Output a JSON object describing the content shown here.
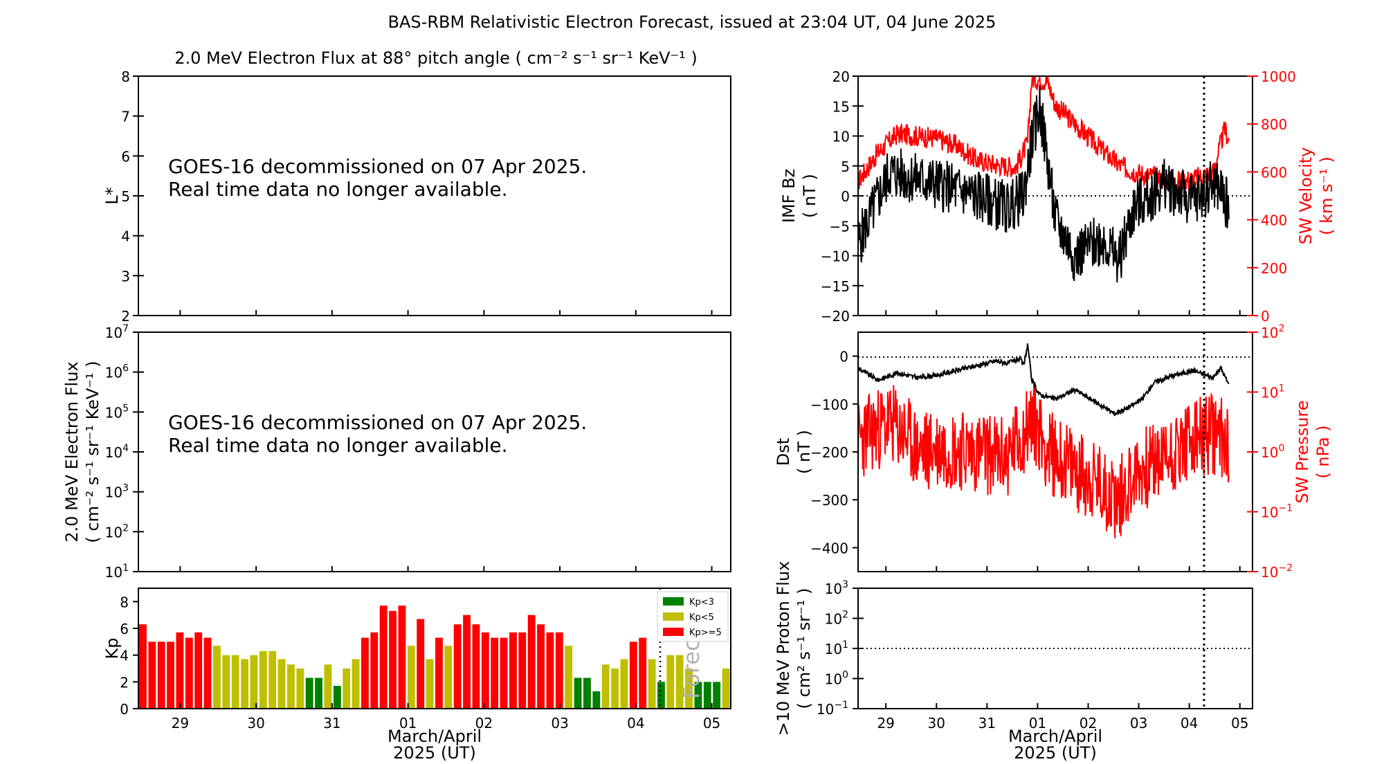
{
  "figure": {
    "title": "BAS-RBM Relativistic Electron Forecast, issued at 23:04 UT, 04 June 2025"
  },
  "colors": {
    "kp_low": "#008000",
    "kp_mid": "#bfbf00",
    "kp_high": "#ff0000",
    "sw": "#ff0000",
    "imf": "#000000"
  },
  "chart_data": [
    {
      "id": "lstar",
      "type": "line",
      "title": "2.0 MeV Electron Flux at 88° pitch angle ( cm⁻² s⁻¹ sr⁻¹ KeV⁻¹ )",
      "ylabel": "L*",
      "ylim": [
        2,
        8
      ],
      "yticks": [
        "2",
        "3",
        "4",
        "5",
        "6",
        "7",
        "8"
      ],
      "message": [
        "GOES-16 decommissioned on 07 Apr 2025.",
        "Real time data no longer available."
      ]
    },
    {
      "id": "flux",
      "type": "line",
      "ylabel": [
        "2.0 MeV Electron Flux",
        "( cm⁻² s⁻¹ sr⁻¹ KeV⁻¹ )"
      ],
      "yscale": "log",
      "ylim": [
        10,
        10000000
      ],
      "yticks": [
        [
          "10",
          "1"
        ],
        [
          "10",
          "2"
        ],
        [
          "10",
          "3"
        ],
        [
          "10",
          "4"
        ],
        [
          "10",
          "5"
        ],
        [
          "10",
          "6"
        ],
        [
          "10",
          "7"
        ]
      ],
      "message": [
        "GOES-16 decommissioned on 07 Apr 2025.",
        "Real time data no longer available."
      ]
    },
    {
      "id": "kp",
      "type": "bar",
      "ylabel": "Kp",
      "ylim": [
        0,
        9
      ],
      "yticks": [
        "0",
        "2",
        "4",
        "6",
        "8"
      ],
      "xlabel": [
        "March/April",
        "2025 (UT)"
      ],
      "xticks": [
        "29",
        "30",
        "31",
        "01",
        "02",
        "03",
        "04",
        "05"
      ],
      "legend": {
        "placement": "top-right",
        "entries": [
          "Kp<3",
          "Kp<5",
          "Kp>=5"
        ]
      },
      "forecast_label": "Forecast",
      "values": [
        6.3,
        5,
        5,
        5,
        5.7,
        5.3,
        5.7,
        5.3,
        4.7,
        4,
        4,
        3.7,
        4,
        4.3,
        4.3,
        3.7,
        3.3,
        3,
        2.3,
        2.3,
        3.3,
        1.7,
        3,
        3.7,
        5.3,
        5.7,
        7.7,
        7.3,
        7.7,
        4.7,
        6.7,
        3.7,
        5.3,
        4.7,
        6.3,
        7,
        6.3,
        5.7,
        5.3,
        5.3,
        5.7,
        5.7,
        7,
        6.3,
        5.7,
        5.7,
        4.7,
        2.3,
        2.3,
        1.3,
        3.3,
        3,
        3.7,
        5,
        5.3,
        3.7,
        2,
        4,
        4,
        3,
        2,
        2,
        2,
        3
      ]
    },
    {
      "id": "imf",
      "type": "line",
      "ylabel": [
        "IMF Bz",
        "( nT )"
      ],
      "ylim": [
        -20,
        20
      ],
      "yticks": [
        "−20",
        "−15",
        "−10",
        "−5",
        "0",
        "5",
        "10",
        "15",
        "20"
      ],
      "ylabel_right": [
        "SW Velocity",
        "( km s⁻¹ )"
      ],
      "ylim_right": [
        0,
        1000
      ],
      "yticks_right": [
        "0",
        "200",
        "400",
        "600",
        "800",
        "1000"
      ],
      "series": [
        {
          "axis": "left",
          "knots": [
            [
              0,
              -8
            ],
            [
              0.08,
              4
            ],
            [
              0.2,
              2
            ],
            [
              0.3,
              0
            ],
            [
              0.38,
              -2
            ],
            [
              0.42,
              0
            ],
            [
              0.44,
              9
            ],
            [
              0.46,
              15
            ],
            [
              0.48,
              6
            ],
            [
              0.5,
              -4
            ],
            [
              0.55,
              -10
            ],
            [
              0.62,
              -7
            ],
            [
              0.66,
              -11
            ],
            [
              0.7,
              -2
            ],
            [
              0.78,
              2
            ],
            [
              0.85,
              -1
            ],
            [
              0.9,
              2
            ],
            [
              0.92,
              1
            ],
            [
              0.94,
              -2
            ]
          ]
        },
        {
          "axis": "right",
          "knots": [
            [
              0,
              560
            ],
            [
              0.05,
              680
            ],
            [
              0.1,
              760
            ],
            [
              0.2,
              740
            ],
            [
              0.25,
              710
            ],
            [
              0.3,
              650
            ],
            [
              0.35,
              630
            ],
            [
              0.4,
              620
            ],
            [
              0.43,
              720
            ],
            [
              0.44,
              990
            ],
            [
              0.48,
              980
            ],
            [
              0.5,
              880
            ],
            [
              0.55,
              800
            ],
            [
              0.6,
              720
            ],
            [
              0.66,
              630
            ],
            [
              0.7,
              600
            ],
            [
              0.75,
              580
            ],
            [
              0.8,
              560
            ],
            [
              0.85,
              570
            ],
            [
              0.9,
              600
            ],
            [
              0.92,
              720
            ],
            [
              0.93,
              780
            ],
            [
              0.94,
              730
            ]
          ]
        }
      ]
    },
    {
      "id": "dst",
      "type": "line",
      "ylabel": [
        "Dst",
        "( nT )"
      ],
      "ylim": [
        -450,
        50
      ],
      "yticks": [
        "−400",
        "−300",
        "−200",
        "−100",
        "0"
      ],
      "ylabel_right": [
        "SW Pressure",
        "( nPa )"
      ],
      "yscale_right": "log",
      "ylim_right": [
        0.01,
        100
      ],
      "yticks_right": [
        [
          "10",
          "−2"
        ],
        [
          "10",
          "−1"
        ],
        [
          "10",
          "0"
        ],
        [
          "10",
          "1"
        ],
        [
          "10",
          "2"
        ]
      ],
      "series": [
        {
          "axis": "left",
          "knots": [
            [
              0,
              -25
            ],
            [
              0.05,
              -50
            ],
            [
              0.1,
              -35
            ],
            [
              0.15,
              -45
            ],
            [
              0.2,
              -40
            ],
            [
              0.25,
              -30
            ],
            [
              0.3,
              -20
            ],
            [
              0.35,
              -10
            ],
            [
              0.38,
              -15
            ],
            [
              0.41,
              -5
            ],
            [
              0.42,
              -20
            ],
            [
              0.43,
              25
            ],
            [
              0.44,
              -50
            ],
            [
              0.46,
              -80
            ],
            [
              0.5,
              -90
            ],
            [
              0.55,
              -70
            ],
            [
              0.6,
              -95
            ],
            [
              0.65,
              -120
            ],
            [
              0.68,
              -110
            ],
            [
              0.72,
              -90
            ],
            [
              0.75,
              -55
            ],
            [
              0.8,
              -40
            ],
            [
              0.85,
              -30
            ],
            [
              0.9,
              -45
            ],
            [
              0.92,
              -25
            ],
            [
              0.94,
              -60
            ]
          ]
        },
        {
          "axis": "right",
          "knots": [
            [
              0,
              1.5
            ],
            [
              0.08,
              3
            ],
            [
              0.15,
              1
            ],
            [
              0.22,
              1.2
            ],
            [
              0.3,
              1
            ],
            [
              0.38,
              0.8
            ],
            [
              0.42,
              2
            ],
            [
              0.44,
              3.5
            ],
            [
              0.48,
              1
            ],
            [
              0.55,
              0.5
            ],
            [
              0.6,
              0.3
            ],
            [
              0.66,
              0.15
            ],
            [
              0.7,
              0.4
            ],
            [
              0.78,
              0.8
            ],
            [
              0.85,
              1.5
            ],
            [
              0.9,
              2
            ],
            [
              0.94,
              1.5
            ]
          ]
        }
      ]
    },
    {
      "id": "proton",
      "type": "line",
      "ylabel": [
        ">10 MeV Proton Flux",
        "( cm² s⁻¹ sr⁻¹ )"
      ],
      "yscale": "log",
      "ylim": [
        0.1,
        1000
      ],
      "yticks": [
        [
          "10",
          "−1"
        ],
        [
          "10",
          "0"
        ],
        [
          "10",
          "1"
        ],
        [
          "10",
          "2"
        ],
        [
          "10",
          "3"
        ]
      ],
      "threshold": 10,
      "xlabel": [
        "March/April",
        "2025 (UT)"
      ],
      "xticks": [
        "29",
        "30",
        "31",
        "01",
        "02",
        "03",
        "04",
        "05"
      ]
    }
  ]
}
